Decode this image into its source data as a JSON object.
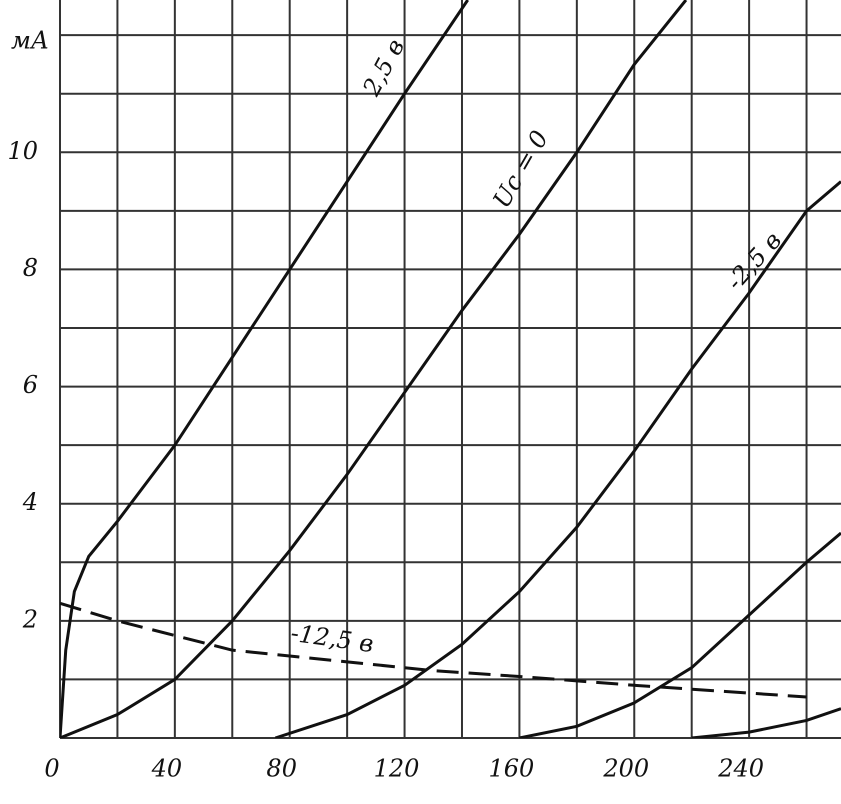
{
  "chart_data": {
    "type": "line",
    "y_label": "мА",
    "xlim": [
      0,
      272
    ],
    "ylim": [
      0,
      12.6
    ],
    "xticks": [
      0,
      40,
      80,
      120,
      160,
      200,
      240
    ],
    "yticks": [
      2,
      4,
      6,
      8,
      10
    ],
    "xgrid": [
      0,
      20,
      40,
      60,
      80,
      100,
      120,
      140,
      160,
      180,
      200,
      220,
      240,
      260
    ],
    "ygrid": [
      0,
      1,
      2,
      3,
      4,
      5,
      6,
      7,
      8,
      9,
      10,
      11,
      12
    ],
    "grid": true,
    "series": [
      {
        "name": "2,5 в",
        "color": "#111111",
        "dashed": false,
        "x": [
          0,
          2,
          5,
          10,
          20,
          40,
          60,
          80,
          100,
          120,
          142
        ],
        "values": [
          0,
          1.5,
          2.5,
          3.1,
          3.7,
          5,
          6.5,
          8,
          9.5,
          11,
          12.6
        ]
      },
      {
        "name": "Uc = 0",
        "color": "#111111",
        "dashed": false,
        "x": [
          0,
          20,
          40,
          60,
          80,
          100,
          120,
          140,
          160,
          180,
          200,
          218
        ],
        "values": [
          0,
          0.4,
          1,
          2,
          3.2,
          4.5,
          5.9,
          7.3,
          8.6,
          10,
          11.5,
          12.6
        ]
      },
      {
        "name": "-2,5 в",
        "color": "#111111",
        "dashed": false,
        "x": [
          75,
          100,
          120,
          140,
          160,
          180,
          200,
          220,
          240,
          260,
          272
        ],
        "values": [
          0,
          0.4,
          0.9,
          1.6,
          2.5,
          3.6,
          4.9,
          6.3,
          7.6,
          9,
          9.5
        ]
      },
      {
        "color": "#111111",
        "dashed": false,
        "x": [
          160,
          180,
          200,
          220,
          240,
          260,
          272
        ],
        "values": [
          0,
          0.2,
          0.6,
          1.2,
          2.1,
          3,
          3.5
        ]
      },
      {
        "color": "#111111",
        "dashed": false,
        "x": [
          220,
          240,
          260,
          272
        ],
        "values": [
          0,
          0.1,
          0.3,
          0.5
        ]
      },
      {
        "name": "-12,5 в",
        "color": "#111111",
        "dashed": true,
        "x": [
          0,
          20,
          60,
          100,
          130,
          160,
          200,
          260
        ],
        "values": [
          2.3,
          2.0,
          1.5,
          1.3,
          1.15,
          1.05,
          0.9,
          0.7
        ]
      }
    ]
  }
}
